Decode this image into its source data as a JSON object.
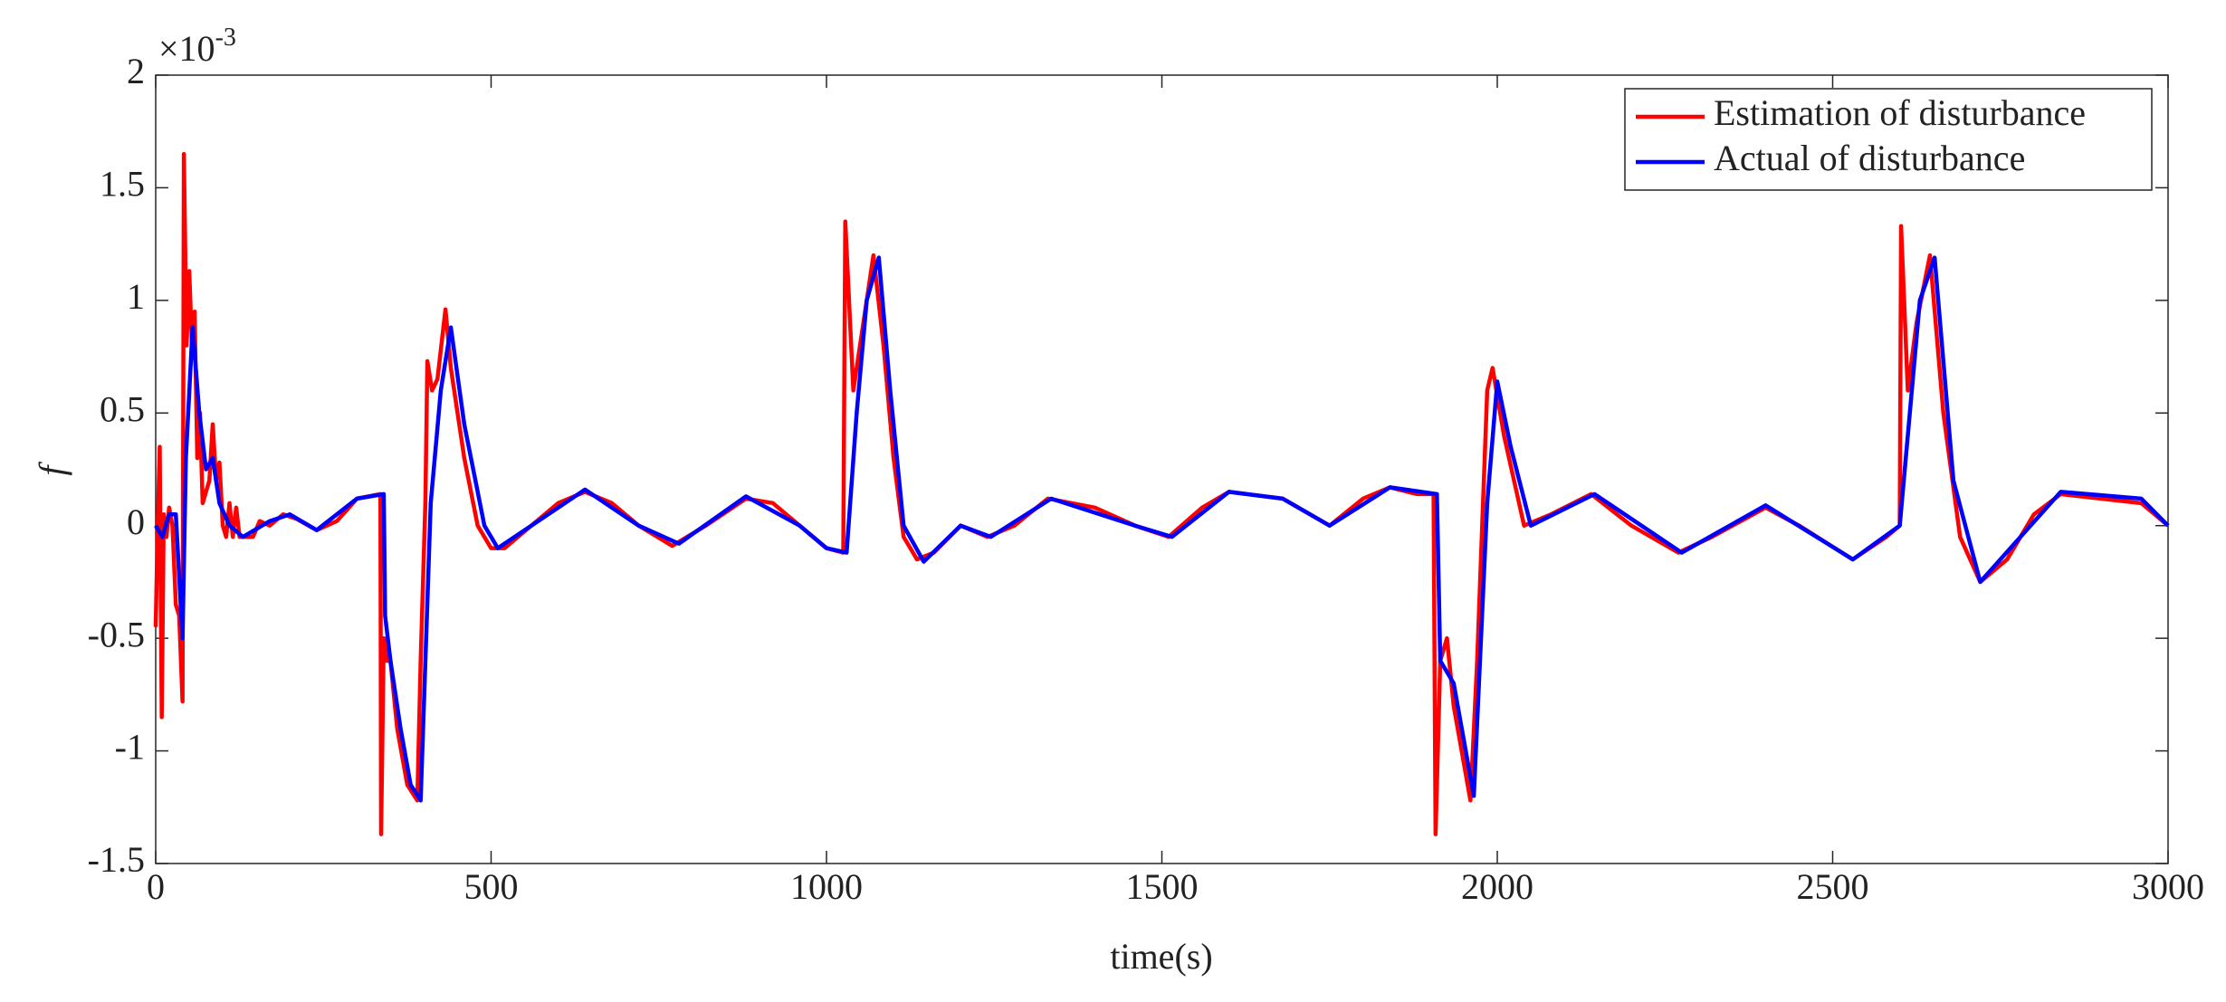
{
  "chart_data": {
    "type": "line",
    "multiplier_base": "×10",
    "multiplier_exponent": "-3",
    "x_label": "time(s)",
    "y_label": "f",
    "xlim": [
      0,
      3000
    ],
    "xticks": [
      0,
      500,
      1000,
      1500,
      2000,
      2500,
      3000
    ],
    "ylim": [
      -1.5,
      2
    ],
    "yticks": [
      -1.5,
      -1,
      -0.5,
      0,
      0.5,
      1,
      1.5,
      2
    ],
    "legend": "upper right",
    "grid": false,
    "series": [
      {
        "name": "Estimation of disturbance",
        "color": "#ff0000",
        "x": [
          0,
          3,
          6,
          9,
          12,
          16,
          20,
          25,
          30,
          35,
          40,
          42,
          46,
          50,
          54,
          58,
          62,
          66,
          70,
          75,
          80,
          85,
          90,
          95,
          100,
          105,
          110,
          115,
          120,
          125,
          135,
          145,
          155,
          170,
          190,
          210,
          240,
          270,
          300,
          335,
          336,
          340,
          345,
          350,
          360,
          375,
          390,
          395,
          402,
          405,
          412,
          420,
          432,
          440,
          460,
          480,
          500,
          520,
          560,
          600,
          640,
          680,
          720,
          770,
          820,
          880,
          920,
          960,
          1000,
          1025,
          1028,
          1040,
          1055,
          1070,
          1085,
          1100,
          1115,
          1135,
          1160,
          1200,
          1240,
          1280,
          1330,
          1400,
          1460,
          1510,
          1560,
          1600,
          1680,
          1750,
          1800,
          1840,
          1880,
          1905,
          1908,
          1915,
          1925,
          1935,
          1960,
          1970,
          1985,
          1993,
          2010,
          2040,
          2080,
          2140,
          2200,
          2270,
          2320,
          2400,
          2450,
          2530,
          2580,
          2600,
          2602,
          2612,
          2625,
          2645,
          2665,
          2690,
          2720,
          2760,
          2800,
          2840,
          2900,
          2960,
          3000
        ],
        "values": [
          -0.45,
          0,
          0.35,
          -0.85,
          0.05,
          -0.05,
          0.08,
          0,
          -0.35,
          -0.4,
          -0.78,
          1.65,
          0.8,
          1.13,
          0.8,
          0.95,
          0.3,
          0.5,
          0.1,
          0.15,
          0.2,
          0.45,
          0.2,
          0.28,
          0,
          -0.05,
          0.1,
          -0.05,
          0.08,
          -0.05,
          -0.05,
          -0.05,
          0.02,
          0,
          0.05,
          0.03,
          -0.02,
          0.02,
          0.12,
          0.14,
          -1.37,
          -0.5,
          -0.6,
          -0.6,
          -0.9,
          -1.15,
          -1.22,
          -0.6,
          0.1,
          0.73,
          0.6,
          0.65,
          0.96,
          0.7,
          0.3,
          0,
          -0.1,
          -0.1,
          0,
          0.1,
          0.15,
          0.1,
          0,
          -0.09,
          0,
          0.12,
          0.1,
          0,
          -0.1,
          -0.12,
          1.35,
          0.6,
          0.9,
          1.2,
          0.8,
          0.3,
          -0.05,
          -0.15,
          -0.12,
          0,
          -0.05,
          0,
          0.12,
          0.08,
          0,
          -0.05,
          0.08,
          0.15,
          0.12,
          0,
          0.12,
          0.17,
          0.14,
          0.14,
          -1.37,
          -0.6,
          -0.5,
          -0.8,
          -1.22,
          -0.6,
          0.6,
          0.7,
          0.4,
          0,
          0.05,
          0.14,
          0,
          -0.12,
          -0.05,
          0.08,
          0,
          -0.15,
          -0.05,
          0,
          1.33,
          0.6,
          0.9,
          1.2,
          0.5,
          -0.05,
          -0.25,
          -0.15,
          0.05,
          0.14,
          0.12,
          0.1,
          0
        ]
      },
      {
        "name": "Actual of disturbance",
        "color": "#0000ff",
        "x": [
          0,
          10,
          20,
          30,
          40,
          45,
          55,
          65,
          75,
          85,
          95,
          110,
          130,
          170,
          200,
          240,
          300,
          340,
          342,
          350,
          365,
          380,
          395,
          410,
          425,
          440,
          460,
          490,
          510,
          560,
          640,
          720,
          780,
          880,
          960,
          1000,
          1030,
          1045,
          1060,
          1078,
          1095,
          1115,
          1145,
          1200,
          1245,
          1335,
          1460,
          1515,
          1600,
          1680,
          1750,
          1840,
          1910,
          1915,
          1935,
          1965,
          1985,
          2000,
          2020,
          2050,
          2145,
          2275,
          2400,
          2530,
          2600,
          2615,
          2630,
          2652,
          2680,
          2720,
          2840,
          2960,
          3000
        ],
        "values": [
          0,
          -0.05,
          0.05,
          0.05,
          -0.5,
          0.3,
          0.88,
          0.5,
          0.25,
          0.3,
          0.1,
          0,
          -0.05,
          0.02,
          0.05,
          -0.02,
          0.12,
          0.14,
          -0.4,
          -0.6,
          -0.9,
          -1.15,
          -1.22,
          0.1,
          0.6,
          0.88,
          0.45,
          0,
          -0.1,
          0,
          0.16,
          0,
          -0.08,
          0.13,
          0,
          -0.1,
          -0.12,
          0.5,
          1.0,
          1.19,
          0.6,
          0,
          -0.16,
          0,
          -0.05,
          0.12,
          0,
          -0.05,
          0.15,
          0.12,
          0,
          0.17,
          0.14,
          -0.6,
          -0.7,
          -1.2,
          0.1,
          0.64,
          0.35,
          0,
          0.14,
          -0.12,
          0.09,
          -0.15,
          0,
          0.5,
          1.0,
          1.19,
          0.2,
          -0.25,
          0.15,
          0.12,
          0
        ]
      }
    ]
  }
}
